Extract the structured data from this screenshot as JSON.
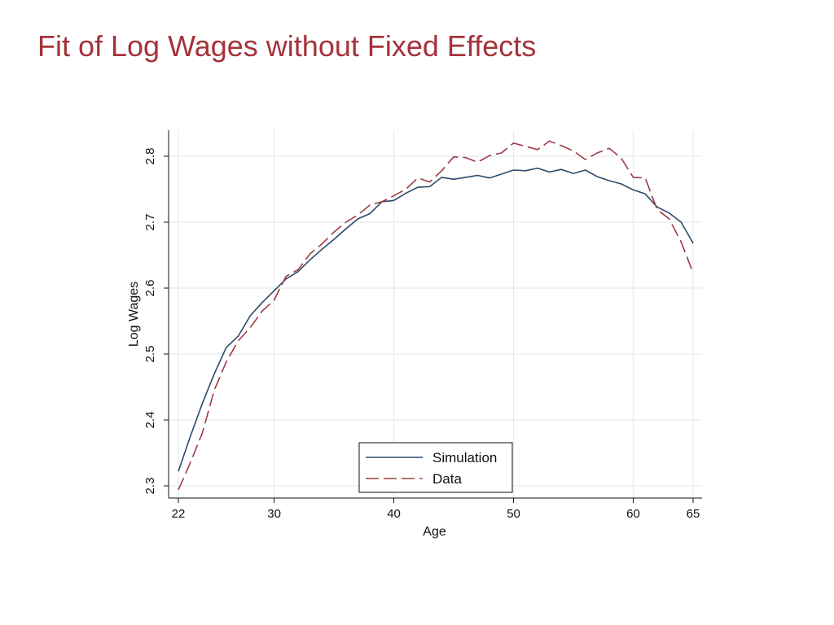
{
  "slide": {
    "title": "Fit of Log Wages without Fixed Effects"
  },
  "colors": {
    "title": "#a5333a",
    "simulation": "#2b4a6a",
    "data": "#9e3b45",
    "grid": "#e6eaec",
    "axis": "#111111"
  },
  "chart_data": {
    "type": "line",
    "xlabel": "Age",
    "ylabel": "Log Wages",
    "xlim": [
      22,
      65
    ],
    "ylim": [
      2.29,
      2.84
    ],
    "xticks": [
      22,
      30,
      40,
      50,
      60,
      65
    ],
    "xtick_labels": [
      "22",
      "30",
      "40",
      "50",
      "60",
      "65"
    ],
    "yticks": [
      2.3,
      2.4,
      2.5,
      2.6,
      2.7,
      2.8
    ],
    "ytick_labels": [
      "2.3",
      "2.4",
      "2.5",
      "2.6",
      "2.7",
      "2.8"
    ],
    "grid": true,
    "legend_position": "bottom-center",
    "x": [
      22,
      23,
      24,
      25,
      26,
      27,
      28,
      29,
      30,
      31,
      32,
      33,
      34,
      35,
      36,
      37,
      38,
      39,
      40,
      41,
      42,
      43,
      44,
      45,
      46,
      47,
      48,
      49,
      50,
      51,
      52,
      53,
      54,
      55,
      56,
      57,
      58,
      59,
      60,
      61,
      62,
      63,
      64,
      65
    ],
    "series": [
      {
        "name": "Simulation",
        "style": "solid",
        "values": [
          2.322,
          2.375,
          2.425,
          2.47,
          2.51,
          2.527,
          2.558,
          2.578,
          2.596,
          2.614,
          2.625,
          2.643,
          2.659,
          2.674,
          2.69,
          2.705,
          2.713,
          2.731,
          2.733,
          2.744,
          2.753,
          2.754,
          2.768,
          2.765,
          2.768,
          2.771,
          2.767,
          2.773,
          2.779,
          2.778,
          2.782,
          2.776,
          2.78,
          2.774,
          2.779,
          2.769,
          2.763,
          2.758,
          2.749,
          2.743,
          2.723,
          2.714,
          2.7,
          2.668
        ]
      },
      {
        "name": "Data",
        "style": "dashed",
        "values": [
          2.294,
          2.335,
          2.38,
          2.445,
          2.488,
          2.52,
          2.54,
          2.565,
          2.582,
          2.618,
          2.628,
          2.652,
          2.667,
          2.685,
          2.7,
          2.711,
          2.726,
          2.731,
          2.74,
          2.75,
          2.767,
          2.761,
          2.778,
          2.799,
          2.798,
          2.791,
          2.801,
          2.805,
          2.82,
          2.815,
          2.81,
          2.823,
          2.816,
          2.808,
          2.795,
          2.805,
          2.812,
          2.797,
          2.768,
          2.767,
          2.719,
          2.705,
          2.67,
          2.623
        ]
      }
    ]
  }
}
